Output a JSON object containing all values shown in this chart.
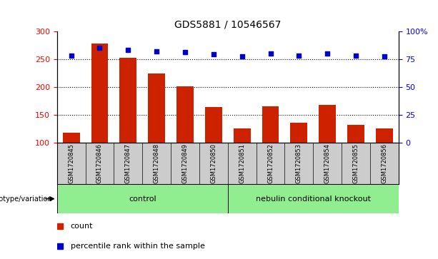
{
  "title": "GDS5881 / 10546567",
  "samples": [
    "GSM1720845",
    "GSM1720846",
    "GSM1720847",
    "GSM1720848",
    "GSM1720849",
    "GSM1720850",
    "GSM1720851",
    "GSM1720852",
    "GSM1720853",
    "GSM1720854",
    "GSM1720855",
    "GSM1720856"
  ],
  "counts": [
    117,
    278,
    252,
    224,
    201,
    163,
    125,
    165,
    135,
    167,
    132,
    125
  ],
  "percentiles": [
    78,
    85,
    83,
    82,
    81,
    79,
    77,
    80,
    78,
    80,
    78,
    77
  ],
  "ctrl_count": 6,
  "ko_count": 6,
  "group_labels": [
    "control",
    "nebulin conditional knockout"
  ],
  "group_label_left": "genotype/variation",
  "ylim_left": [
    100,
    300
  ],
  "ylim_right": [
    0,
    100
  ],
  "yticks_left": [
    100,
    150,
    200,
    250,
    300
  ],
  "yticks_right": [
    0,
    25,
    50,
    75,
    100
  ],
  "ytick_labels_right": [
    "0",
    "25",
    "50",
    "75",
    "100%"
  ],
  "bar_color": "#CC2200",
  "dot_color": "#0000CC",
  "grid_values": [
    150,
    200,
    250
  ],
  "legend_count": "count",
  "legend_percentile": "percentile rank within the sample",
  "sample_bg_color": "#CCCCCC",
  "group_color": "#90EE90",
  "title_fontsize": 10,
  "tick_fontsize": 8,
  "label_fontsize": 6
}
